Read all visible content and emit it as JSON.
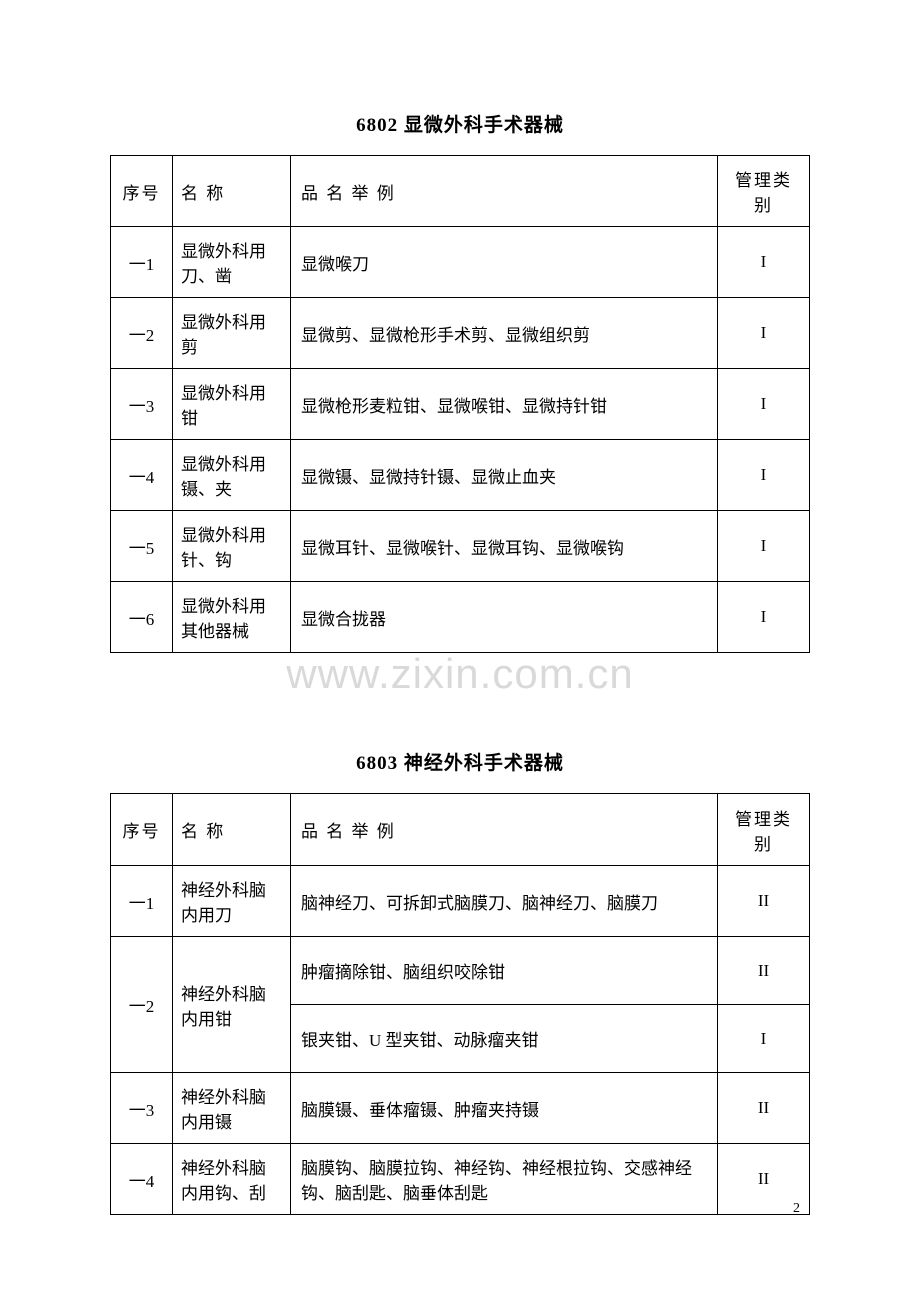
{
  "watermark": "www.zixin.com.cn",
  "page_number": "2",
  "section1": {
    "title": "6802 显微外科手术器械",
    "headers": {
      "seq": "序号",
      "name": "名 称",
      "examples": "品 名 举 例",
      "category": "管理类别"
    },
    "rows": [
      {
        "seq": "一1",
        "name": "显微外科用刀、凿",
        "examples": "显微喉刀",
        "category": "I"
      },
      {
        "seq": "一2",
        "name": "显微外科用剪",
        "examples": "显微剪、显微枪形手术剪、显微组织剪",
        "category": "I"
      },
      {
        "seq": "一3",
        "name": "显微外科用钳",
        "examples": "显微枪形麦粒钳、显微喉钳、显微持针钳",
        "category": "I"
      },
      {
        "seq": "一4",
        "name": "显微外科用镊、夹",
        "examples": "显微镊、显微持针镊、显微止血夹",
        "category": "I"
      },
      {
        "seq": "一5",
        "name": "显微外科用针、钩",
        "examples": "显微耳针、显微喉针、显微耳钩、显微喉钩",
        "category": "I"
      },
      {
        "seq": "一6",
        "name": "显微外科用其他器械",
        "examples": "显微合拢器",
        "category": "I"
      }
    ]
  },
  "section2": {
    "title": "6803 神经外科手术器械",
    "headers": {
      "seq": "序号",
      "name": "名 称",
      "examples": "品 名 举 例",
      "category": "管理类别"
    },
    "rows": [
      {
        "seq": "一1",
        "name": "神经外科脑内用刀",
        "examples": "脑神经刀、可拆卸式脑膜刀、脑神经刀、脑膜刀",
        "category": "II",
        "rowspan": 1
      },
      {
        "seq": "一2",
        "name": "神经外科脑内用钳",
        "examples_a": "肿瘤摘除钳、脑组织咬除钳",
        "category_a": "II",
        "examples_b": "银夹钳、U 型夹钳、动脉瘤夹钳",
        "category_b": "I",
        "rowspan": 2
      },
      {
        "seq": "一3",
        "name": "神经外科脑内用镊",
        "examples": "脑膜镊、垂体瘤镊、肿瘤夹持镊",
        "category": "II",
        "rowspan": 1
      },
      {
        "seq": "一4",
        "name": "神经外科脑内用钩、刮",
        "examples": "脑膜钩、脑膜拉钩、神经钩、神经根拉钩、交感神经钩、脑刮匙、脑垂体刮匙",
        "category": "II",
        "rowspan": 1
      }
    ]
  }
}
